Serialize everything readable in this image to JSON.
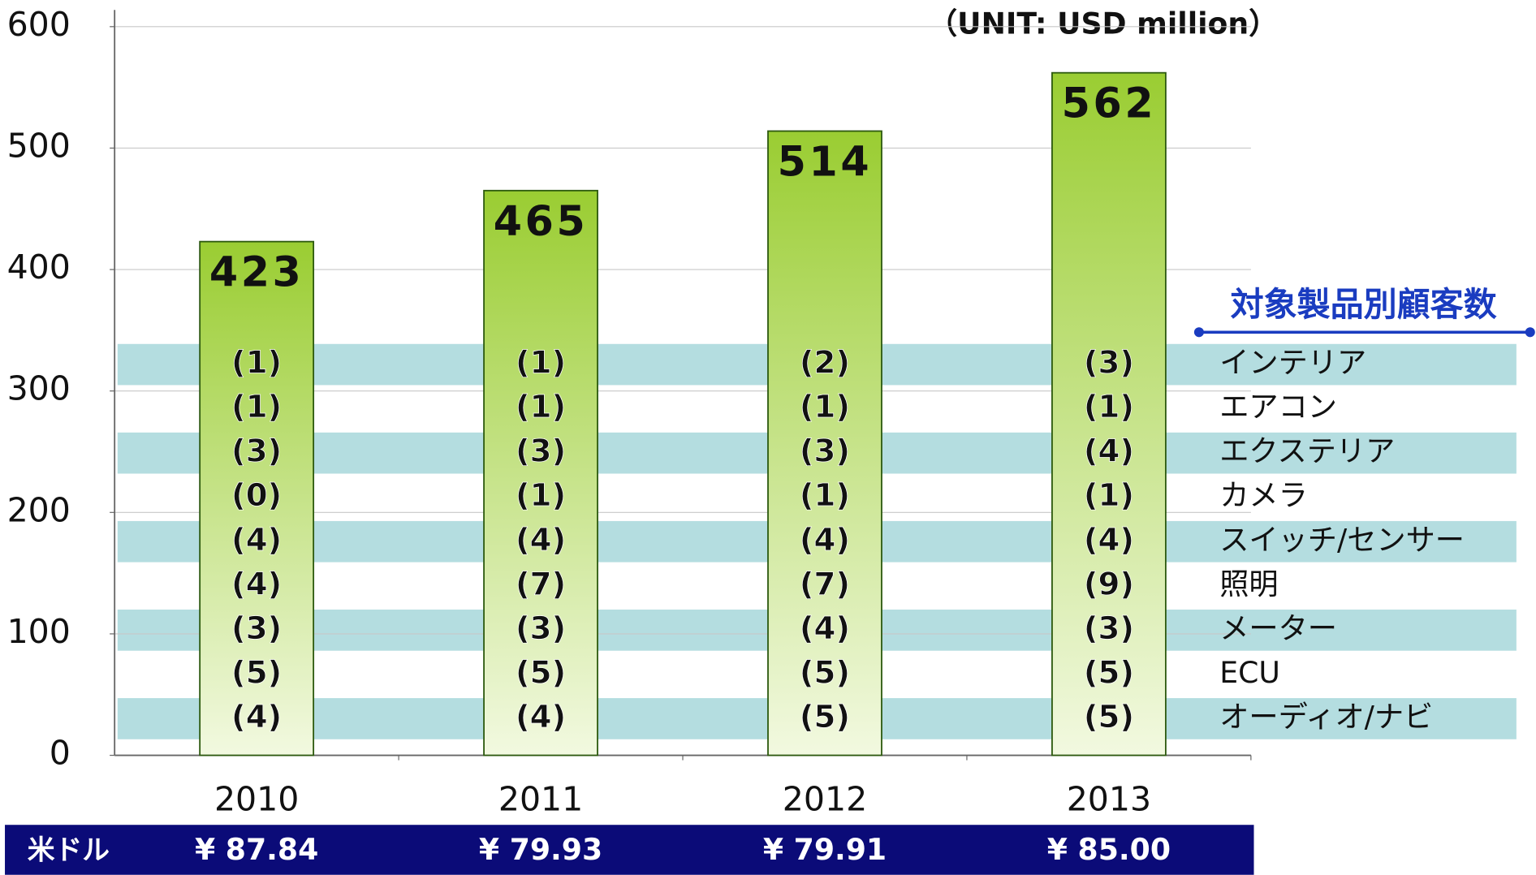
{
  "chart_data": {
    "type": "bar",
    "annotation": "（UNIT: USD million）",
    "categories": [
      "2010",
      "2011",
      "2012",
      "2013"
    ],
    "values": [
      423,
      465,
      514,
      562
    ],
    "color": "#9acd32",
    "ylim": [
      0,
      600
    ],
    "yticks": [
      0,
      100,
      200,
      300,
      400,
      500,
      600
    ],
    "grid": true
  },
  "customer_table": {
    "title": "対象製品別顧客数",
    "rows": [
      {
        "label": "インテリア",
        "cells": [
          "(1)",
          "(1)",
          "(2)",
          "(3)"
        ]
      },
      {
        "label": "エアコン",
        "cells": [
          "(1)",
          "(1)",
          "(1)",
          "(1)"
        ]
      },
      {
        "label": "エクステリア",
        "cells": [
          "(3)",
          "(3)",
          "(3)",
          "(4)"
        ]
      },
      {
        "label": "カメラ",
        "cells": [
          "(0)",
          "(1)",
          "(1)",
          "(1)"
        ]
      },
      {
        "label": "スイッチ/センサー",
        "cells": [
          "(4)",
          "(4)",
          "(4)",
          "(4)"
        ]
      },
      {
        "label": "照明",
        "cells": [
          "(4)",
          "(7)",
          "(7)",
          "(9)"
        ]
      },
      {
        "label": "メーター",
        "cells": [
          "(3)",
          "(3)",
          "(4)",
          "(3)"
        ]
      },
      {
        "label": "ECU",
        "cells": [
          "(5)",
          "(5)",
          "(5)",
          "(5)"
        ]
      },
      {
        "label": "オーディオ/ナビ",
        "cells": [
          "(4)",
          "(4)",
          "(5)",
          "(5)"
        ]
      }
    ]
  },
  "exchange_rate": {
    "label": "米ドル",
    "cells": [
      "¥ 87.84",
      "¥ 79.93",
      "¥ 79.91",
      "¥ 85.00"
    ]
  }
}
